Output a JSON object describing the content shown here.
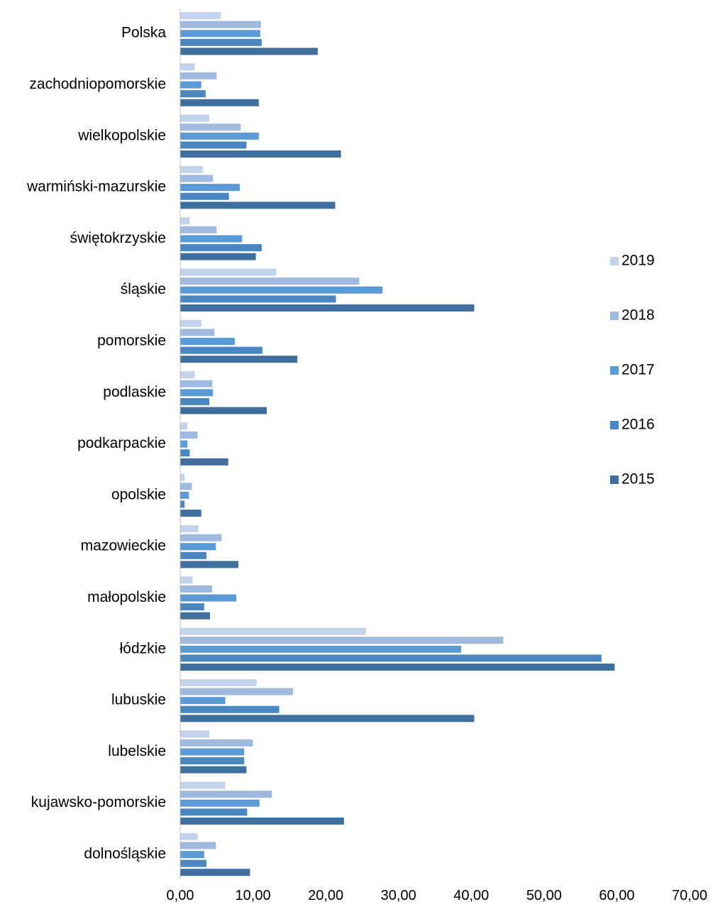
{
  "chart_data": {
    "type": "bar",
    "orientation": "horizontal",
    "title": "",
    "xlabel": "",
    "ylabel": "",
    "xlim": [
      0,
      70
    ],
    "x_ticks": [
      "0,00",
      "10,00",
      "20,00",
      "30,00",
      "40,00",
      "50,00",
      "60,00",
      "70,00"
    ],
    "grid": false,
    "legend_position": "right",
    "categories": [
      "Polska",
      "zachodniopomorskie",
      "wielkopolskie",
      "warmiński-mazurskie",
      "świętokrzyskie",
      "śląskie",
      "pomorskie",
      "podlaskie",
      "podkarpackie",
      "opolskie",
      "mazowieckie",
      "małopolskie",
      "łódzkie",
      "lubuskie",
      "lubelskie",
      "kujawsko-pomorskie",
      "dolnośląskie"
    ],
    "series": [
      {
        "name": "2019",
        "color": "#c3d3eb",
        "values": [
          5.6,
          2.0,
          4.0,
          3.1,
          1.3,
          13.2,
          2.9,
          2.0,
          1.0,
          0.6,
          2.5,
          1.7,
          25.5,
          10.5,
          4.0,
          6.2,
          2.4
        ]
      },
      {
        "name": "2018",
        "color": "#9fb9df",
        "values": [
          11.1,
          5.0,
          8.3,
          4.5,
          5.0,
          24.6,
          4.7,
          4.4,
          2.4,
          1.6,
          5.7,
          4.4,
          44.4,
          15.5,
          10.0,
          12.6,
          4.9
        ]
      },
      {
        "name": "2017",
        "color": "#5a9ad6",
        "values": [
          11.0,
          2.9,
          10.8,
          8.2,
          8.5,
          27.8,
          7.5,
          4.5,
          1.0,
          1.2,
          4.9,
          7.7,
          38.6,
          6.2,
          8.8,
          10.9,
          3.3
        ]
      },
      {
        "name": "2016",
        "color": "#4a86bf",
        "values": [
          11.2,
          3.5,
          9.1,
          6.7,
          11.2,
          21.4,
          11.3,
          4.0,
          1.3,
          0.6,
          3.6,
          3.3,
          57.9,
          13.6,
          8.8,
          9.2,
          3.6
        ]
      },
      {
        "name": "2015",
        "color": "#3f6f9f",
        "values": [
          18.9,
          10.8,
          22.1,
          21.3,
          10.4,
          40.4,
          16.1,
          11.9,
          6.6,
          2.9,
          8.0,
          4.1,
          59.7,
          40.4,
          9.1,
          22.5,
          9.6
        ]
      }
    ]
  }
}
